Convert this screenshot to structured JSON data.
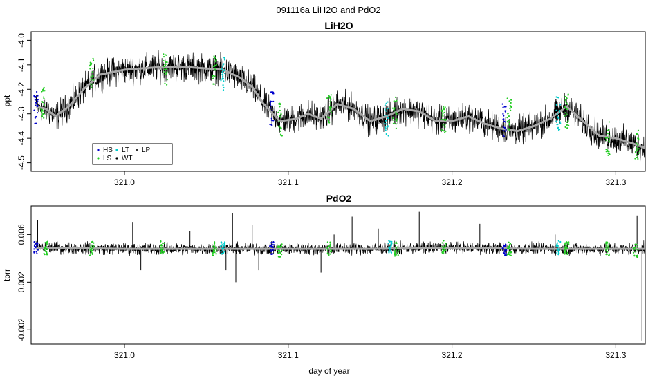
{
  "figure": {
    "title": "091116a   LiH2O and PdO2",
    "xlabel": "day of year"
  },
  "legend": {
    "entries": [
      {
        "key": "HS",
        "label": "HS",
        "color": "#0000cc"
      },
      {
        "key": "LT",
        "label": "LT",
        "color": "#00cccc"
      },
      {
        "key": "LP",
        "label": "LP",
        "color": "#333333"
      },
      {
        "key": "LS",
        "label": "LS",
        "color": "#22cc22"
      },
      {
        "key": "WT",
        "label": "WT",
        "color": "#000000"
      }
    ]
  },
  "colors": {
    "raw": "#000000",
    "smoothed": "#a8a8a8",
    "HS": "#0000cc",
    "LT": "#00cccc",
    "LS": "#22cc22",
    "WT": "#000000",
    "LP": "#333333"
  },
  "chart_data": [
    {
      "type": "line",
      "title": "LiH2O",
      "xlabel": "",
      "ylabel": "ppt",
      "xlim": [
        320.943,
        321.318
      ],
      "ylim": [
        -4.535,
        -3.965
      ],
      "y_reversed": true,
      "xticks": [
        {
          "value": 321.0,
          "label": "321.0"
        },
        {
          "value": 321.1,
          "label": "321.1"
        },
        {
          "value": 321.2,
          "label": "321.2"
        },
        {
          "value": 321.3,
          "label": "321.3"
        }
      ],
      "yticks": [
        {
          "value": -4.0,
          "label": "-4.0"
        },
        {
          "value": -4.1,
          "label": "-4.1"
        },
        {
          "value": -4.2,
          "label": "-4.2"
        },
        {
          "value": -4.3,
          "label": "-4.3"
        },
        {
          "value": -4.4,
          "label": "-4.4"
        },
        {
          "value": -4.5,
          "label": "-4.5"
        }
      ],
      "noise": 0.035,
      "series": [
        {
          "name": "smoothed",
          "x": [
            320.946,
            320.952,
            320.958,
            320.966,
            320.975,
            320.985,
            321.0,
            321.02,
            321.04,
            321.06,
            321.07,
            321.078,
            321.085,
            321.095,
            321.105,
            321.112,
            321.12,
            321.13,
            321.14,
            321.15,
            321.16,
            321.17,
            321.18,
            321.19,
            321.2,
            321.21,
            321.22,
            321.23,
            321.24,
            321.25,
            321.26,
            321.27,
            321.28,
            321.29,
            321.3,
            321.31,
            321.318
          ],
          "y": [
            -4.27,
            -4.28,
            -4.31,
            -4.27,
            -4.2,
            -4.14,
            -4.12,
            -4.11,
            -4.11,
            -4.12,
            -4.15,
            -4.19,
            -4.26,
            -4.33,
            -4.32,
            -4.3,
            -4.32,
            -4.26,
            -4.28,
            -4.33,
            -4.31,
            -4.28,
            -4.29,
            -4.33,
            -4.33,
            -4.31,
            -4.34,
            -4.36,
            -4.37,
            -4.35,
            -4.32,
            -4.27,
            -4.33,
            -4.39,
            -4.4,
            -4.42,
            -4.44
          ]
        }
      ],
      "markers": [
        {
          "x": 320.946,
          "y": -4.27,
          "type": "HS"
        },
        {
          "x": 320.95,
          "y": -4.26,
          "type": "LS"
        },
        {
          "x": 320.98,
          "y": -4.14,
          "type": "LS"
        },
        {
          "x": 321.025,
          "y": -4.12,
          "type": "LS"
        },
        {
          "x": 321.055,
          "y": -4.11,
          "type": "LS"
        },
        {
          "x": 321.06,
          "y": -4.14,
          "type": "LT"
        },
        {
          "x": 321.09,
          "y": -4.28,
          "type": "HS"
        },
        {
          "x": 321.095,
          "y": -4.32,
          "type": "LS"
        },
        {
          "x": 321.125,
          "y": -4.27,
          "type": "LS"
        },
        {
          "x": 321.16,
          "y": -4.32,
          "type": "LT"
        },
        {
          "x": 321.165,
          "y": -4.3,
          "type": "LS"
        },
        {
          "x": 321.195,
          "y": -4.34,
          "type": "LS"
        },
        {
          "x": 321.232,
          "y": -4.33,
          "type": "HS"
        },
        {
          "x": 321.235,
          "y": -4.3,
          "type": "LS"
        },
        {
          "x": 321.265,
          "y": -4.3,
          "type": "LT"
        },
        {
          "x": 321.27,
          "y": -4.29,
          "type": "LS"
        },
        {
          "x": 321.295,
          "y": -4.4,
          "type": "LS"
        },
        {
          "x": 321.313,
          "y": -4.42,
          "type": "LS"
        }
      ]
    },
    {
      "type": "line",
      "title": "PdO2",
      "xlabel": "day of year",
      "ylabel": "torr",
      "xlim": [
        320.943,
        321.318
      ],
      "ylim": [
        -0.0032,
        0.0084
      ],
      "xticks": [
        {
          "value": 321.0,
          "label": "321.0"
        },
        {
          "value": 321.1,
          "label": "321.1"
        },
        {
          "value": 321.2,
          "label": "321.2"
        },
        {
          "value": 321.3,
          "label": "321.3"
        }
      ],
      "yticks": [
        {
          "value": 0.006,
          "label": "0.006"
        },
        {
          "value": 0.002,
          "label": "0.002"
        },
        {
          "value": -0.002,
          "label": "-0.002"
        }
      ],
      "noise": 0.0003,
      "series": [
        {
          "name": "smoothed",
          "x": [
            320.946,
            321.0,
            321.05,
            321.1,
            321.15,
            321.2,
            321.25,
            321.3,
            321.318
          ],
          "y": [
            0.0049,
            0.0048,
            0.0048,
            0.0048,
            0.0048,
            0.0049,
            0.0048,
            0.0048,
            0.0048
          ]
        }
      ],
      "spikes": [
        {
          "x": 320.947,
          "y": 0.0072
        },
        {
          "x": 320.978,
          "y": 0.0052
        },
        {
          "x": 321.005,
          "y": 0.007
        },
        {
          "x": 321.01,
          "y": 0.003
        },
        {
          "x": 321.04,
          "y": 0.0063
        },
        {
          "x": 321.062,
          "y": 0.003
        },
        {
          "x": 321.066,
          "y": 0.0078
        },
        {
          "x": 321.068,
          "y": 0.002
        },
        {
          "x": 321.078,
          "y": 0.0068
        },
        {
          "x": 321.082,
          "y": 0.003
        },
        {
          "x": 321.12,
          "y": 0.0028
        },
        {
          "x": 321.128,
          "y": 0.006
        },
        {
          "x": 321.139,
          "y": 0.0075
        },
        {
          "x": 321.155,
          "y": 0.0065
        },
        {
          "x": 321.18,
          "y": 0.0079
        },
        {
          "x": 321.217,
          "y": 0.0069
        },
        {
          "x": 321.263,
          "y": 0.006
        },
        {
          "x": 321.313,
          "y": 0.0076
        },
        {
          "x": 321.316,
          "y": -0.0029
        }
      ],
      "markers": [
        {
          "x": 320.946,
          "y": 0.0049,
          "type": "HS"
        },
        {
          "x": 320.952,
          "y": 0.0049,
          "type": "LS"
        },
        {
          "x": 320.98,
          "y": 0.0048,
          "type": "LS"
        },
        {
          "x": 321.023,
          "y": 0.0049,
          "type": "LS"
        },
        {
          "x": 321.055,
          "y": 0.0048,
          "type": "LS"
        },
        {
          "x": 321.06,
          "y": 0.0048,
          "type": "LT"
        },
        {
          "x": 321.09,
          "y": 0.0048,
          "type": "HS"
        },
        {
          "x": 321.095,
          "y": 0.0047,
          "type": "LS"
        },
        {
          "x": 321.125,
          "y": 0.0048,
          "type": "LS"
        },
        {
          "x": 321.162,
          "y": 0.0049,
          "type": "LT"
        },
        {
          "x": 321.166,
          "y": 0.0048,
          "type": "LS"
        },
        {
          "x": 321.195,
          "y": 0.0049,
          "type": "LS"
        },
        {
          "x": 321.232,
          "y": 0.0048,
          "type": "HS"
        },
        {
          "x": 321.235,
          "y": 0.0048,
          "type": "LS"
        },
        {
          "x": 321.265,
          "y": 0.0049,
          "type": "LT"
        },
        {
          "x": 321.27,
          "y": 0.0048,
          "type": "LS"
        },
        {
          "x": 321.295,
          "y": 0.0048,
          "type": "LS"
        },
        {
          "x": 321.312,
          "y": 0.0047,
          "type": "LS"
        }
      ]
    }
  ]
}
